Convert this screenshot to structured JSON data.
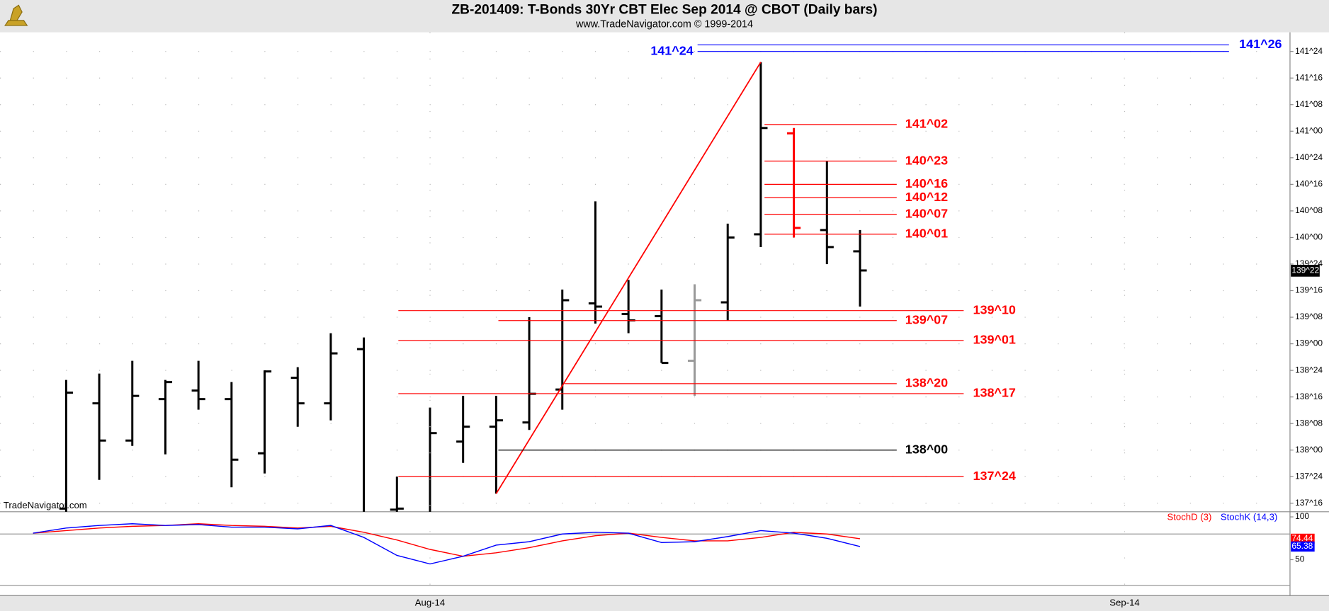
{
  "chart_data": [
    {
      "type": "ohlc",
      "title": "ZB-201409:  T-Bonds 30Yr CBT Elec Sep 2014 @ CBOT  (Daily bars)",
      "subtitle": "www.TradeNavigator.com © 1999-2014",
      "watermark": "TradeNavigator.com",
      "xlim": [
        -1,
        38
      ],
      "xticks": [
        {
          "value": 12,
          "label": "Aug-14"
        },
        {
          "value": 33,
          "label": "Sep-14"
        }
      ],
      "ylim": [
        137.42,
        141.93
      ],
      "yticks": [
        {
          "value": 137.5,
          "label": "137^16"
        },
        {
          "value": 137.75,
          "label": "137^24"
        },
        {
          "value": 138,
          "label": "138^00"
        },
        {
          "value": 138.25,
          "label": "138^08"
        },
        {
          "value": 138.5,
          "label": "138^16"
        },
        {
          "value": 138.75,
          "label": "138^24"
        },
        {
          "value": 139,
          "label": "139^00"
        },
        {
          "value": 139.25,
          "label": "139^08"
        },
        {
          "value": 139.5,
          "label": "139^16"
        },
        {
          "value": 139.75,
          "label": "139^24"
        },
        {
          "value": 140,
          "label": "140^00"
        },
        {
          "value": 140.25,
          "label": "140^08"
        },
        {
          "value": 140.5,
          "label": "140^16"
        },
        {
          "value": 140.75,
          "label": "140^24"
        },
        {
          "value": 141,
          "label": "141^00"
        },
        {
          "value": 141.25,
          "label": "141^08"
        },
        {
          "value": 141.5,
          "label": "141^16"
        },
        {
          "value": 141.75,
          "label": "141^24"
        }
      ],
      "grid": true,
      "open": [
        null,
        137.45,
        138.44,
        138.09,
        138.48,
        138.56,
        138.48,
        137.97,
        138.68,
        138.44,
        138.95,
        137.44,
        137.4,
        138.08,
        138.22,
        138.26,
        138.57,
        139.38,
        139.28,
        139.26,
        138.84,
        139.39,
        140.03,
        140.98,
        140.07,
        139.87
      ],
      "high": [
        null,
        138.66,
        138.72,
        138.84,
        138.66,
        138.84,
        138.64,
        138.75,
        138.78,
        139.1,
        139.06,
        137.75,
        138.4,
        138.51,
        138.51,
        139.25,
        139.51,
        140.34,
        139.6,
        139.51,
        139.56,
        140.13,
        141.65,
        141.03,
        140.72,
        140.07
      ],
      "low": [
        null,
        137.33,
        137.72,
        138.04,
        137.96,
        138.38,
        137.65,
        137.78,
        138.22,
        138.28,
        137.35,
        137.35,
        137.35,
        137.88,
        137.59,
        138.19,
        138.38,
        139.19,
        139.1,
        138.82,
        138.51,
        139.22,
        139.91,
        140.0,
        139.75,
        139.35
      ],
      "close": [
        null,
        138.54,
        138.09,
        138.51,
        138.64,
        138.48,
        137.91,
        138.74,
        138.44,
        138.91,
        137.38,
        137.45,
        138.16,
        138.22,
        138.28,
        138.53,
        139.41,
        139.35,
        139.22,
        138.82,
        139.41,
        140.0,
        141.03,
        140.09,
        139.91,
        139.69
      ],
      "colors": [
        "#000000",
        "#000000",
        "#000000",
        "#000000",
        "#000000",
        "#000000",
        "#000000",
        "#000000",
        "#000000",
        "#000000",
        "#000000",
        "#000000",
        "#000000",
        "#000000",
        "#000000",
        "#000000",
        "#000000",
        "#000000",
        "#000000",
        "#000000",
        "#999999",
        "#000000",
        "#000000",
        "#ff0000",
        "#000000",
        "#000000"
      ],
      "trendline_color": "#ff0000",
      "last_price": {
        "value": 139.6875,
        "label": "139^22"
      },
      "levels": [
        {
          "value": 141.8125,
          "label": "141^26",
          "color": "#0000ff"
        },
        {
          "value": 141.75,
          "label": "141^24",
          "color": "#0000ff"
        },
        {
          "value": 141.0625,
          "label": "141^02",
          "color": "#ff0000"
        },
        {
          "value": 140.71875,
          "label": "140^23",
          "color": "#ff0000"
        },
        {
          "value": 140.5,
          "label": "140^16",
          "color": "#ff0000"
        },
        {
          "value": 140.375,
          "label": "140^12",
          "color": "#ff0000"
        },
        {
          "value": 140.21875,
          "label": "140^07",
          "color": "#ff0000"
        },
        {
          "value": 140.03125,
          "label": "140^01",
          "color": "#ff0000"
        },
        {
          "value": 139.3125,
          "label": "139^10",
          "color": "#ff0000"
        },
        {
          "value": 139.21875,
          "label": "139^07",
          "color": "#ff0000"
        },
        {
          "value": 139.03125,
          "label": "139^01",
          "color": "#ff0000"
        },
        {
          "value": 138.625,
          "label": "138^20",
          "color": "#ff0000"
        },
        {
          "value": 138.53125,
          "label": "138^17",
          "color": "#ff0000"
        },
        {
          "value": 138,
          "label": "138^00",
          "color": "#000000"
        },
        {
          "value": 137.75,
          "label": "137^24",
          "color": "#ff0000"
        }
      ]
    },
    {
      "type": "line",
      "ylim": [
        9,
        105
      ],
      "yticks": [
        50,
        100
      ],
      "levels": [
        80,
        20
      ],
      "series": [
        {
          "name": "StochD (3)",
          "color": "#ff0000",
          "values": [
            81,
            84,
            87,
            89,
            90,
            92,
            90,
            89,
            87,
            89,
            82,
            73,
            62,
            54,
            58,
            64,
            72,
            78,
            81,
            76,
            72,
            72,
            76,
            82,
            80,
            74.44
          ]
        },
        {
          "name": "StochK (14,3)",
          "color": "#0000ff",
          "values": [
            81,
            87,
            90,
            92,
            90,
            91,
            88,
            88,
            86,
            90,
            76,
            55,
            45,
            54,
            67,
            71,
            80,
            82,
            81,
            70,
            71,
            77,
            84,
            81,
            75,
            65.38
          ]
        }
      ]
    }
  ]
}
